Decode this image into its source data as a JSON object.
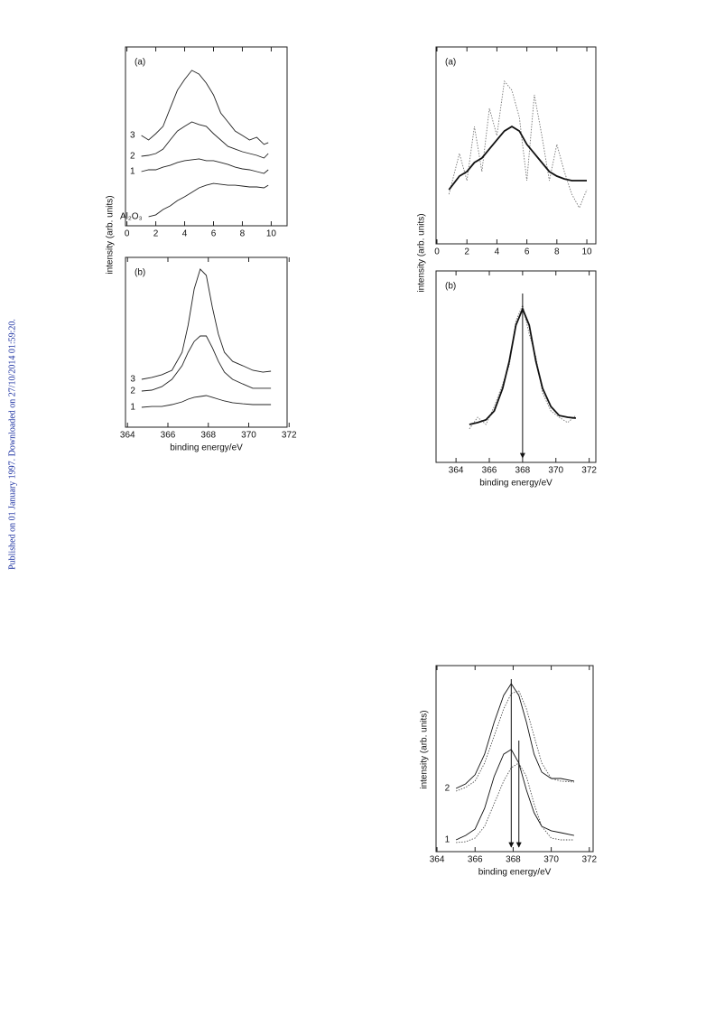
{
  "sidebar": "Published on 01 January 1997. Downloaded on 27/10/2014 01:59:20.",
  "chart_data": [
    {
      "type": "line",
      "panel_label": "(a)",
      "ylabel": "intensity (arb. units)",
      "xlim": [
        -0.1,
        11.1
      ],
      "ylim": [
        0,
        10
      ],
      "xticks": [
        0,
        2,
        4,
        6,
        8,
        10
      ],
      "x": [
        1,
        1.5,
        2,
        2.5,
        3,
        3.5,
        4,
        4.5,
        5,
        5.5,
        6,
        6.5,
        7,
        7.5,
        8,
        8.5,
        9,
        9.5,
        9.8
      ],
      "series": [
        {
          "name": "3",
          "color": "#222",
          "values": [
            5.05,
            4.8,
            5.15,
            5.56,
            6.57,
            7.58,
            8.18,
            8.69,
            8.48,
            7.98,
            7.32,
            6.31,
            5.81,
            5.3,
            5.05,
            4.8,
            4.95,
            4.55,
            4.65
          ]
        },
        {
          "name": "2",
          "color": "#222",
          "values": [
            3.89,
            3.94,
            4.04,
            4.29,
            4.8,
            5.3,
            5.56,
            5.81,
            5.66,
            5.56,
            5.15,
            4.8,
            4.44,
            4.29,
            4.14,
            4.04,
            3.94,
            3.79,
            4.04
          ]
        },
        {
          "name": "1",
          "color": "#222",
          "values": [
            3.03,
            3.13,
            3.13,
            3.28,
            3.38,
            3.54,
            3.64,
            3.69,
            3.74,
            3.64,
            3.64,
            3.54,
            3.43,
            3.28,
            3.18,
            3.13,
            3.03,
            2.93,
            3.13
          ]
        },
        {
          "name": "Al₂O₃",
          "color": "#222",
          "values": [
            null,
            0.51,
            0.61,
            0.91,
            1.11,
            1.41,
            1.62,
            1.87,
            2.12,
            2.27,
            2.37,
            2.32,
            2.27,
            2.27,
            2.22,
            2.17,
            2.17,
            2.12,
            2.27
          ]
        }
      ]
    },
    {
      "type": "line",
      "panel_label": "(b)",
      "xlabel": "binding energy/eV",
      "xlim": [
        363.9,
        371.9
      ],
      "ylim": [
        0,
        10
      ],
      "xticks": [
        364,
        366,
        368,
        370,
        372
      ],
      "x": [
        364.7,
        365.2,
        365.7,
        366.2,
        366.7,
        367.0,
        367.3,
        367.6,
        367.9,
        368.2,
        368.5,
        368.8,
        369.2,
        369.7,
        370.2,
        370.7,
        371.1
      ],
      "series": [
        {
          "name": "3",
          "color": "#222",
          "values": [
            2.82,
            2.93,
            3.09,
            3.35,
            4.41,
            6.01,
            8.14,
            9.31,
            8.94,
            7.07,
            5.48,
            4.41,
            3.88,
            3.62,
            3.35,
            3.24,
            3.3
          ]
        },
        {
          "name": "2",
          "color": "#222",
          "values": [
            2.13,
            2.18,
            2.39,
            2.82,
            3.62,
            4.41,
            5.05,
            5.37,
            5.37,
            4.68,
            3.88,
            3.24,
            2.82,
            2.55,
            2.29,
            2.29,
            2.29
          ]
        },
        {
          "name": "1",
          "color": "#222",
          "values": [
            1.17,
            1.22,
            1.22,
            1.33,
            1.49,
            1.65,
            1.76,
            1.81,
            1.86,
            1.76,
            1.65,
            1.54,
            1.44,
            1.38,
            1.33,
            1.33,
            1.33
          ]
        }
      ]
    },
    {
      "type": "line",
      "panel_label": "(a)",
      "ylabel": "intensity (arb. units)",
      "xlim": [
        -0.06,
        10.6
      ],
      "ylim": [
        0,
        10
      ],
      "xticks": [
        0,
        2,
        4,
        6,
        8,
        10
      ],
      "x": [
        0.8,
        1.5,
        2,
        2.5,
        3,
        3.5,
        4,
        4.5,
        5,
        5.5,
        6,
        6.5,
        7,
        7.5,
        8,
        8.5,
        9,
        9.5,
        10
      ],
      "series": [
        {
          "color": "#777",
          "style": "dotted",
          "values": [
            2.52,
            4.59,
            3.21,
            5.96,
            3.67,
            6.88,
            5.5,
            8.26,
            7.8,
            6.42,
            3.21,
            7.57,
            5.5,
            3.21,
            5.05,
            3.67,
            2.52,
            1.83,
            2.75
          ]
        },
        {
          "color": "#111",
          "style": "thick",
          "values": [
            2.75,
            3.44,
            3.67,
            4.13,
            4.36,
            4.82,
            5.28,
            5.73,
            5.96,
            5.73,
            5.05,
            4.59,
            4.13,
            3.67,
            3.44,
            3.3,
            3.21,
            3.21,
            3.21
          ]
        }
      ]
    },
    {
      "type": "line",
      "panel_label": "(b)",
      "xlabel": "binding energy/eV",
      "xlim": [
        362.8,
        372.4
      ],
      "ylim": [
        0,
        10
      ],
      "xticks": [
        364,
        366,
        368,
        370,
        372
      ],
      "markers_x": [
        368
      ],
      "x": [
        364.8,
        365.3,
        365.8,
        366.3,
        366.8,
        367.2,
        367.6,
        368.0,
        368.4,
        368.8,
        369.2,
        369.7,
        370.2,
        370.7,
        371.2
      ],
      "series": [
        {
          "color": "#777",
          "style": "dotted",
          "values": [
            1.75,
            2.36,
            1.98,
            2.92,
            4.1,
            5.05,
            7.41,
            8.21,
            6.7,
            5.52,
            3.63,
            2.69,
            2.36,
            2.08,
            2.45
          ]
        },
        {
          "color": "#111",
          "style": "thick",
          "values": [
            1.98,
            2.08,
            2.22,
            2.69,
            3.87,
            5.28,
            7.17,
            8.02,
            7.17,
            5.28,
            3.87,
            2.92,
            2.45,
            2.36,
            2.31
          ]
        }
      ]
    },
    {
      "type": "line",
      "ylabel": "intensity (arb. units)",
      "xlabel": "binding energy/eV",
      "xlim": [
        363.95,
        372.2
      ],
      "ylim": [
        0,
        10
      ],
      "xticks": [
        364,
        366,
        368,
        370,
        372
      ],
      "markers_x": [
        367.9,
        368.3
      ],
      "x": [
        365,
        365.5,
        366,
        366.5,
        367,
        367.5,
        367.9,
        368.3,
        368.7,
        369.1,
        369.5,
        370,
        370.5,
        371.2
      ],
      "series": [
        {
          "name": "2",
          "color": "#111",
          "values": [
            3.4,
            3.64,
            4.13,
            5.24,
            6.94,
            8.4,
            9.03,
            8.4,
            6.94,
            5.24,
            4.27,
            3.93,
            3.93,
            3.79
          ]
        },
        {
          "color": "#555",
          "style": "dotted",
          "values": [
            3.25,
            3.45,
            3.79,
            4.76,
            6.21,
            7.67,
            8.5,
            8.64,
            7.67,
            6.21,
            4.76,
            3.93,
            3.79,
            3.74
          ]
        },
        {
          "name": "1",
          "color": "#111",
          "values": [
            0.63,
            0.87,
            1.21,
            2.33,
            4.03,
            5.24,
            5.49,
            4.76,
            3.3,
            2.09,
            1.36,
            1.12,
            1.02,
            0.87
          ]
        },
        {
          "color": "#555",
          "style": "dotted",
          "values": [
            0.49,
            0.53,
            0.73,
            1.36,
            2.57,
            3.79,
            4.51,
            4.76,
            4.03,
            2.57,
            1.36,
            0.73,
            0.63,
            0.63
          ]
        }
      ]
    }
  ]
}
